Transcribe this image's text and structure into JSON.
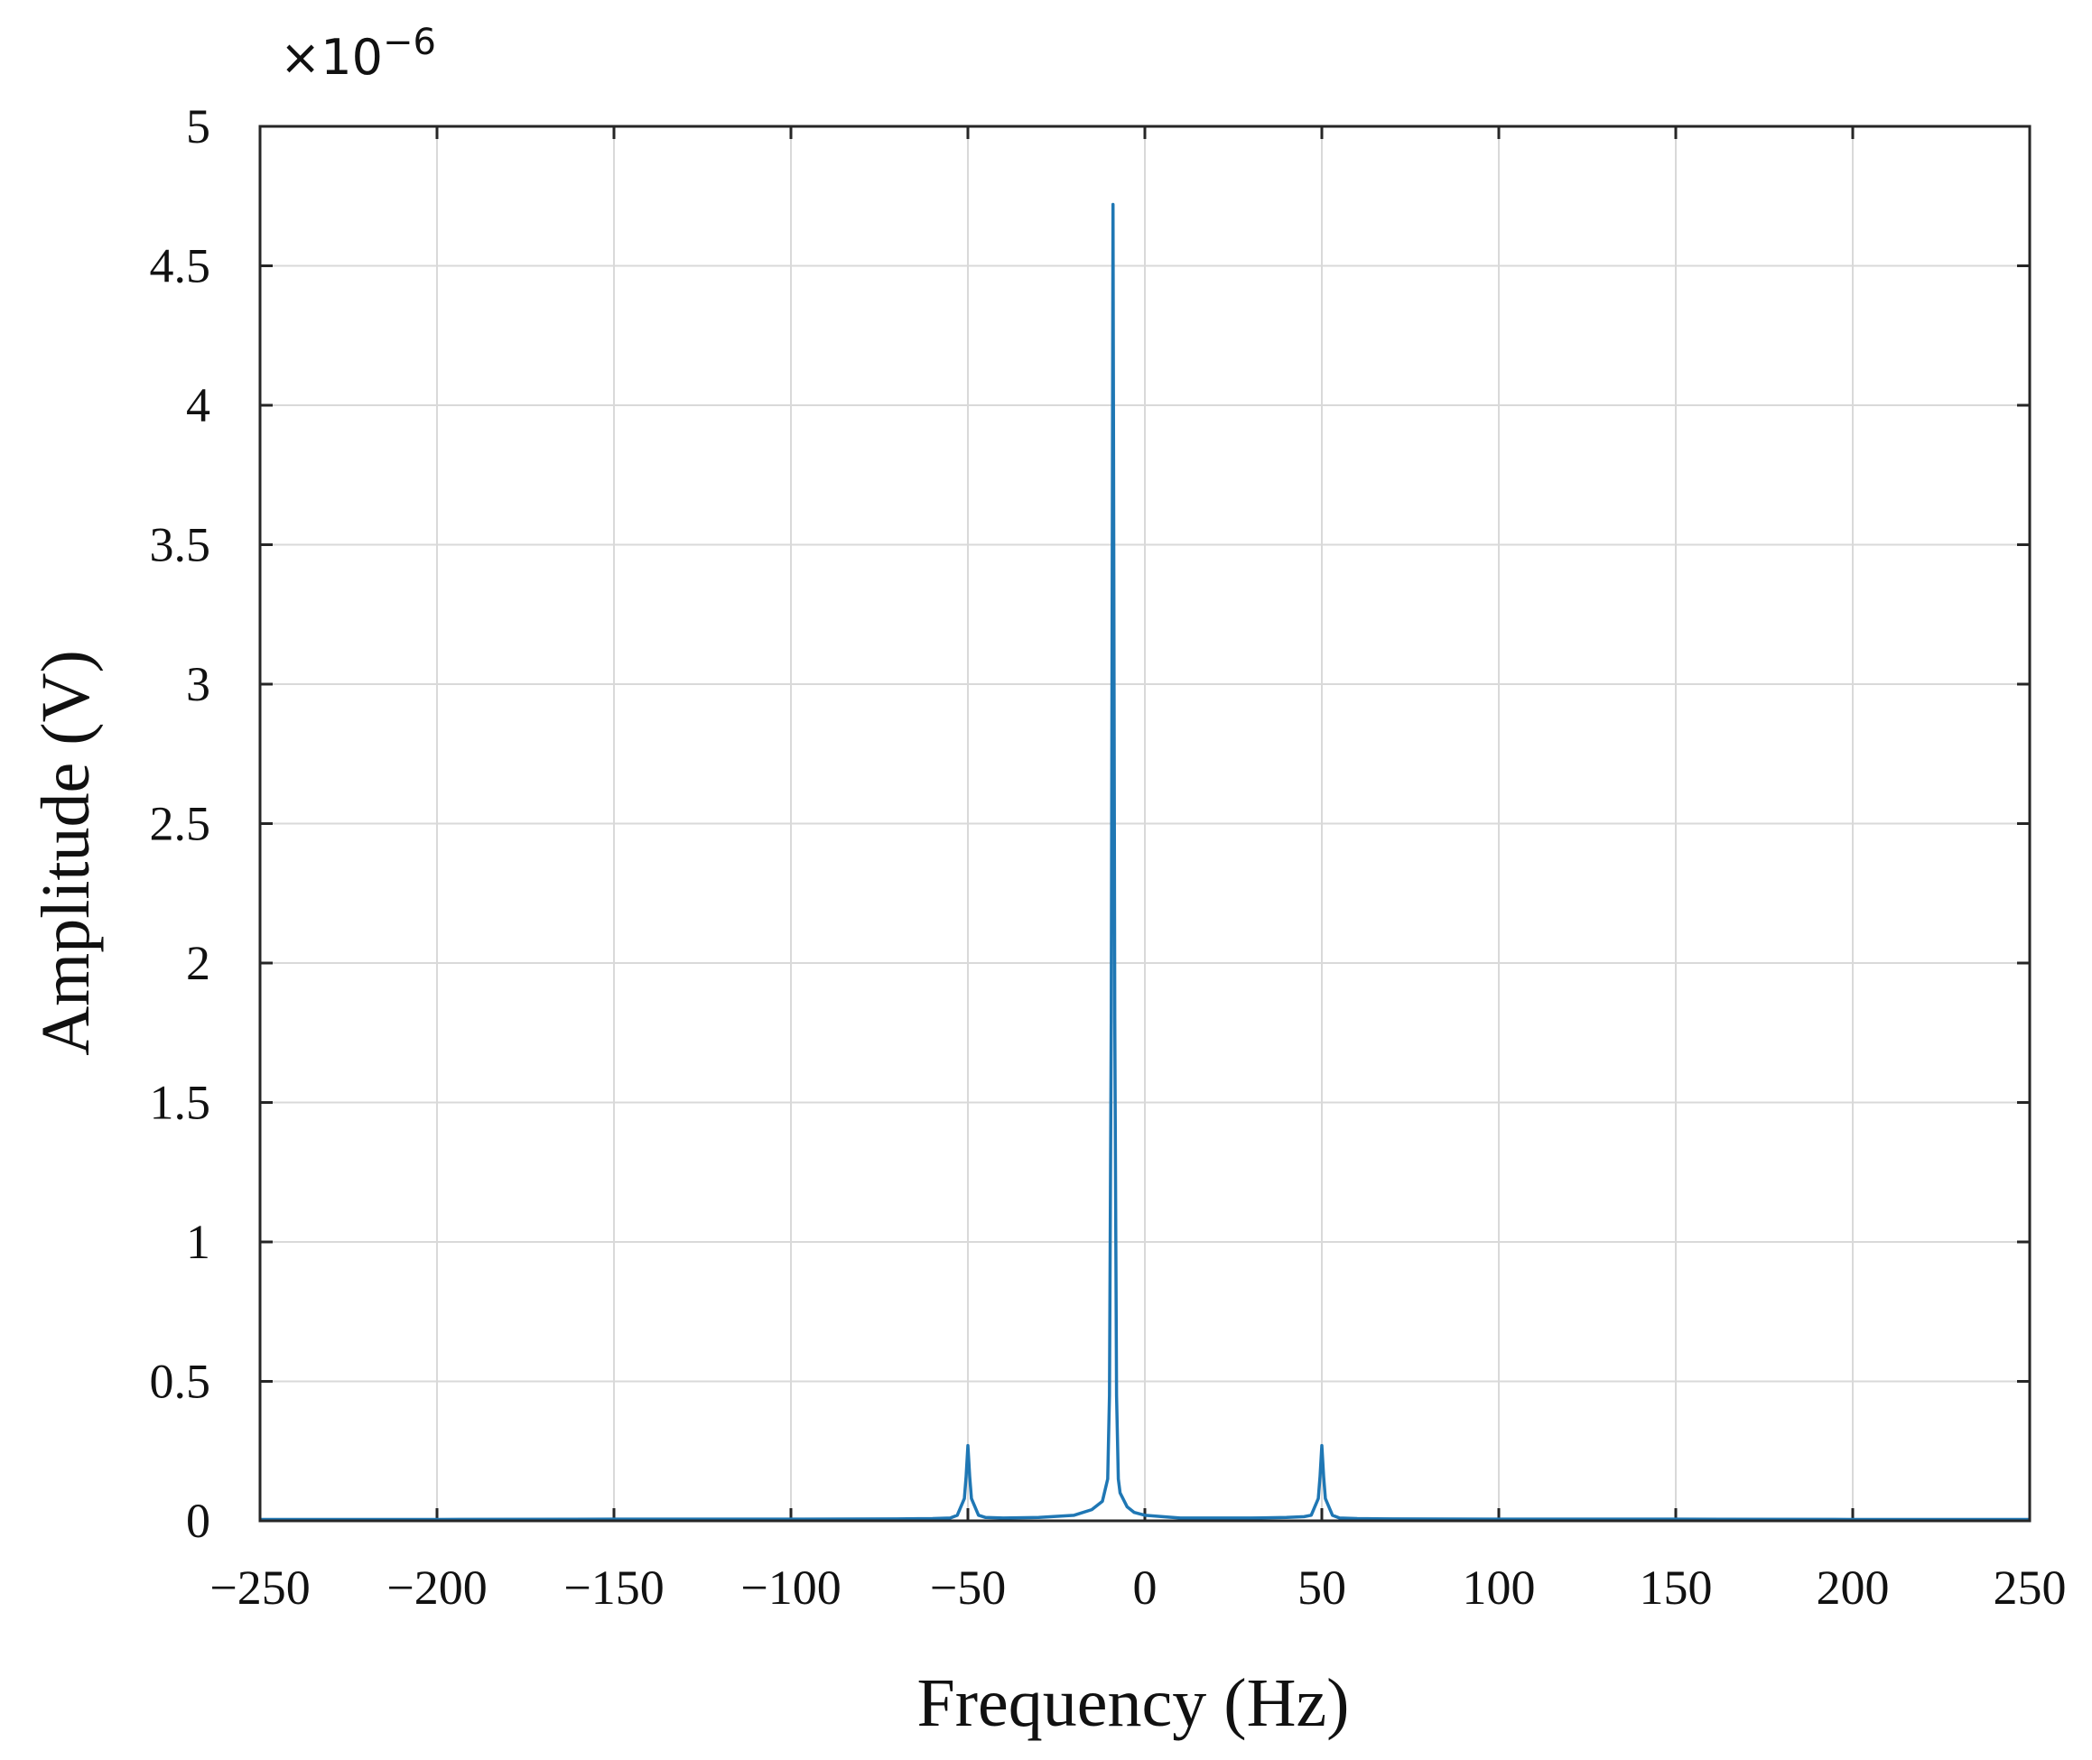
{
  "chart_data": {
    "type": "line",
    "xlabel": "Frequency (Hz)",
    "ylabel": "Amplitude (V)",
    "y_exponent_label": "×10",
    "y_exponent_power": "−6",
    "xlim": [
      -250,
      250
    ],
    "ylim": [
      0,
      5
    ],
    "grid": true,
    "x_ticks": [
      -250,
      -200,
      -150,
      -100,
      -50,
      0,
      50,
      100,
      150,
      200,
      250
    ],
    "x_tick_labels": [
      "−250",
      "−200",
      "−150",
      "−100",
      "−50",
      "0",
      "50",
      "100",
      "150",
      "200",
      "250"
    ],
    "y_ticks": [
      0,
      0.5,
      1,
      1.5,
      2,
      2.5,
      3,
      3.5,
      4,
      4.5,
      5
    ],
    "y_tick_labels": [
      "0",
      "0.5",
      "1",
      "1.5",
      "2",
      "2.5",
      "3",
      "3.5",
      "4",
      "4.5",
      "5"
    ],
    "line_color": "#1f77b4",
    "series": [
      {
        "x": [
          -250,
          -200,
          -150,
          -100,
          -70,
          -60,
          -55,
          -53,
          -51,
          -50.5,
          -50,
          -49.5,
          -49,
          -47,
          -45,
          -40,
          -30,
          -20,
          -15,
          -12,
          -10.5,
          -10,
          -9.5,
          -9,
          -8.5,
          -8,
          -7.5,
          -7,
          -5,
          -3,
          0,
          5,
          10,
          20,
          30,
          40,
          45,
          47,
          49,
          49.5,
          50,
          50.5,
          51,
          53,
          55,
          60,
          70,
          100,
          150,
          200,
          250
        ],
        "y": [
          0.005,
          0.005,
          0.006,
          0.006,
          0.007,
          0.008,
          0.01,
          0.02,
          0.08,
          0.16,
          0.27,
          0.16,
          0.08,
          0.02,
          0.012,
          0.01,
          0.012,
          0.02,
          0.04,
          0.07,
          0.15,
          0.45,
          1.8,
          4.72,
          1.8,
          0.45,
          0.15,
          0.1,
          0.05,
          0.03,
          0.02,
          0.015,
          0.01,
          0.01,
          0.01,
          0.012,
          0.015,
          0.02,
          0.08,
          0.16,
          0.27,
          0.16,
          0.08,
          0.02,
          0.01,
          0.008,
          0.007,
          0.006,
          0.006,
          0.005,
          0.005
        ]
      }
    ]
  }
}
